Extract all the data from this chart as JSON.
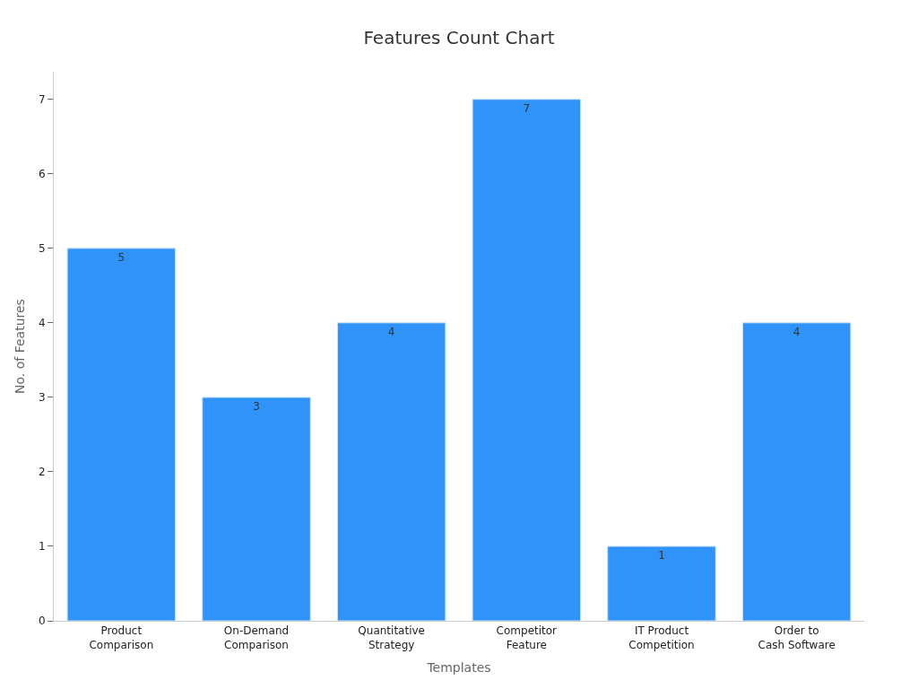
{
  "chart_data": {
    "type": "bar",
    "title": "Features Count Chart",
    "xlabel": "Templates",
    "ylabel": "No. of Features",
    "categories": [
      "Product\nComparison",
      "On-Demand\nComparison",
      "Quantitative\nStrategy",
      "Competitor\nFeature",
      "IT Product\nCompetition",
      "Order to\nCash Software"
    ],
    "values": [
      5,
      3,
      4,
      7,
      1,
      4
    ],
    "color": "#2f93fa",
    "ylim": [
      0,
      7.37
    ],
    "yticks": [
      0,
      1,
      2,
      3,
      4,
      5,
      6,
      7
    ],
    "grid": false,
    "data_labels": true,
    "legend": false
  }
}
